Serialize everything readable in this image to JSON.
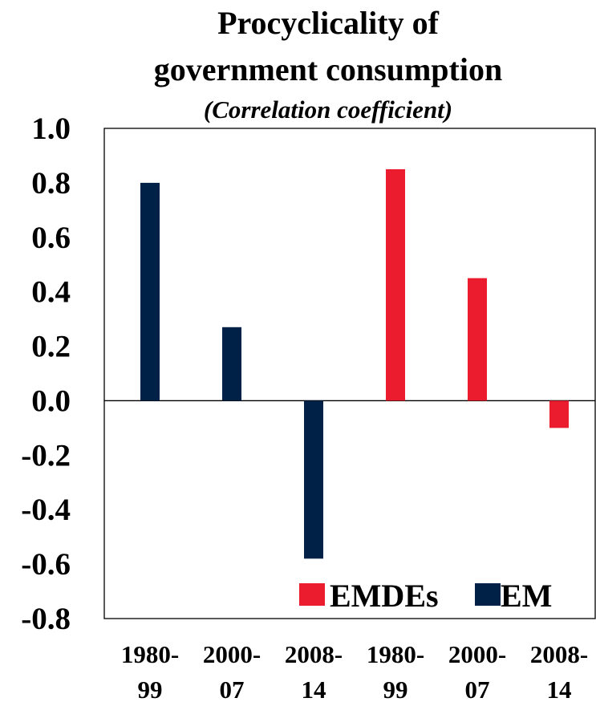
{
  "chart_data": {
    "type": "bar",
    "title": [
      "Procyclicality of",
      "government consumption"
    ],
    "subtitle": "(Correlation coefficient)",
    "xlabel": "",
    "ylabel": "",
    "ylim": [
      -0.8,
      1.0
    ],
    "yticks": [
      "1.0",
      "0.8",
      "0.6",
      "0.4",
      "0.2",
      "0.0",
      "-0.2",
      "-0.4",
      "-0.6",
      "-0.8"
    ],
    "ytick_values": [
      1.0,
      0.8,
      0.6,
      0.4,
      0.2,
      0.0,
      -0.2,
      -0.4,
      -0.6,
      -0.8
    ],
    "categories": [
      [
        "1980-",
        "99"
      ],
      [
        "2000-",
        "07"
      ],
      [
        "2008-",
        "14"
      ],
      [
        "1980-",
        "99"
      ],
      [
        "2000-",
        "07"
      ],
      [
        "2008-",
        "14"
      ]
    ],
    "series": [
      {
        "name": "EM",
        "color": "#002147",
        "values": [
          0.8,
          0.27,
          -0.58,
          null,
          null,
          null
        ]
      },
      {
        "name": "EMDEs",
        "color": "#EB1C2D",
        "values": [
          null,
          null,
          null,
          0.85,
          0.45,
          -0.1
        ]
      }
    ],
    "legend": {
      "placement": "bottom-right",
      "order": [
        "EMDEs",
        "EM"
      ]
    },
    "grid": false
  }
}
